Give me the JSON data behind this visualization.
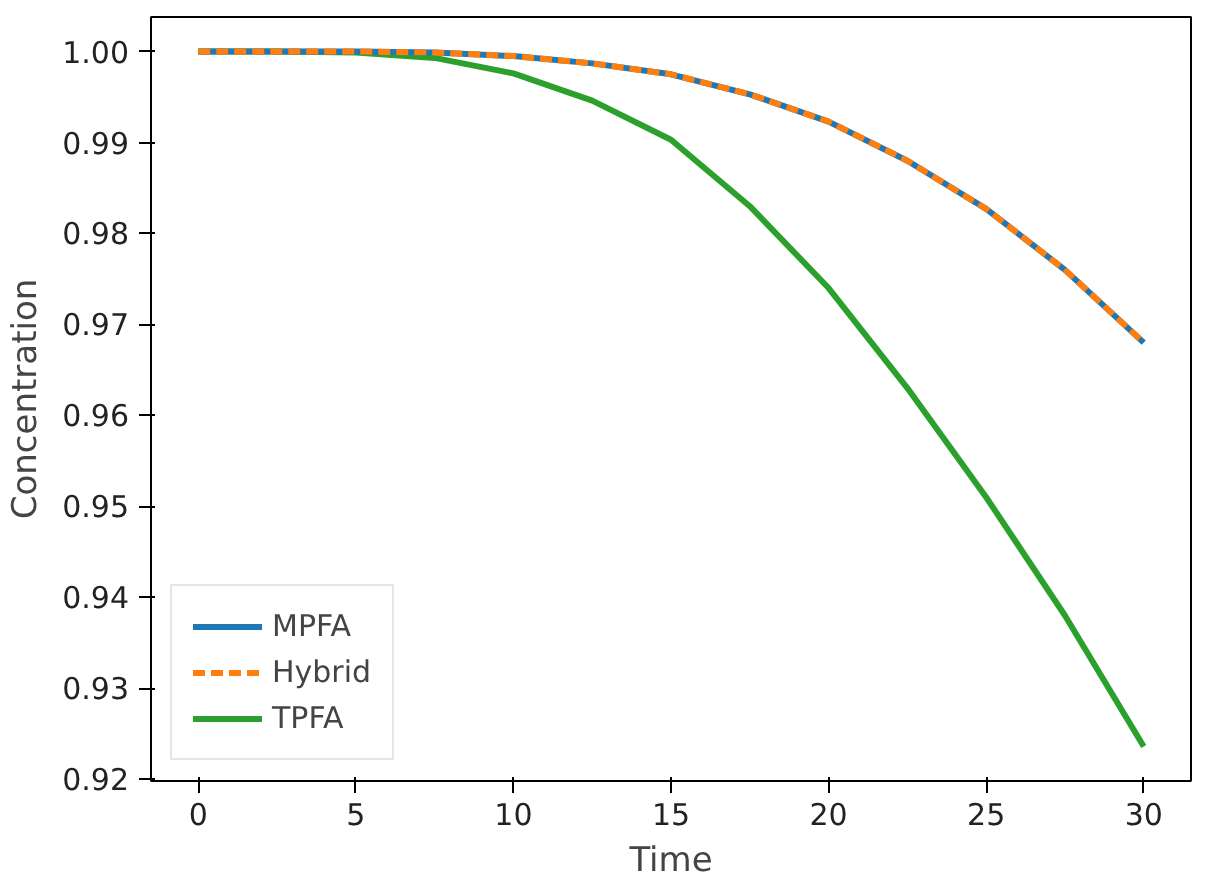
{
  "chart_data": {
    "type": "line",
    "xlabel": "Time",
    "ylabel": "Concentration",
    "x": [
      0,
      2.5,
      5,
      7.5,
      10,
      12.5,
      15,
      17.5,
      20,
      22.5,
      25,
      27.5,
      30
    ],
    "series": [
      {
        "name": "MPFA",
        "color": "#1f77b4",
        "line_style": "solid",
        "values": [
          1.0,
          1.0,
          1.0,
          0.9999,
          0.9995,
          0.9987,
          0.9975,
          0.9953,
          0.9923,
          0.988,
          0.9827,
          0.976,
          0.968
        ]
      },
      {
        "name": "Hybrid",
        "color": "#ff7f0e",
        "line_style": "dashed",
        "values": [
          1.0,
          1.0,
          1.0,
          0.9999,
          0.9995,
          0.9987,
          0.9975,
          0.9953,
          0.9923,
          0.988,
          0.9827,
          0.976,
          0.968
        ]
      },
      {
        "name": "TPFA",
        "color": "#2ca02c",
        "line_style": "solid",
        "values": [
          1.0,
          1.0,
          0.9999,
          0.9993,
          0.9976,
          0.9946,
          0.9903,
          0.983,
          0.974,
          0.963,
          0.951,
          0.938,
          0.9236
        ]
      }
    ],
    "xlim": [
      -1.5,
      31.5
    ],
    "ylim": [
      0.9198,
      1.0038
    ],
    "xticks": [
      0,
      5,
      10,
      15,
      20,
      25,
      30
    ],
    "yticks": [
      {
        "value": 0.92,
        "label": "0.92"
      },
      {
        "value": 0.93,
        "label": "0.93"
      },
      {
        "value": 0.94,
        "label": "0.94"
      },
      {
        "value": 0.95,
        "label": "0.95"
      },
      {
        "value": 0.96,
        "label": "0.96"
      },
      {
        "value": 0.97,
        "label": "0.97"
      },
      {
        "value": 0.98,
        "label": "0.98"
      },
      {
        "value": 0.99,
        "label": "0.99"
      },
      {
        "value": 1.0,
        "label": "1.00"
      }
    ],
    "grid": false,
    "legend": "bottom left"
  }
}
